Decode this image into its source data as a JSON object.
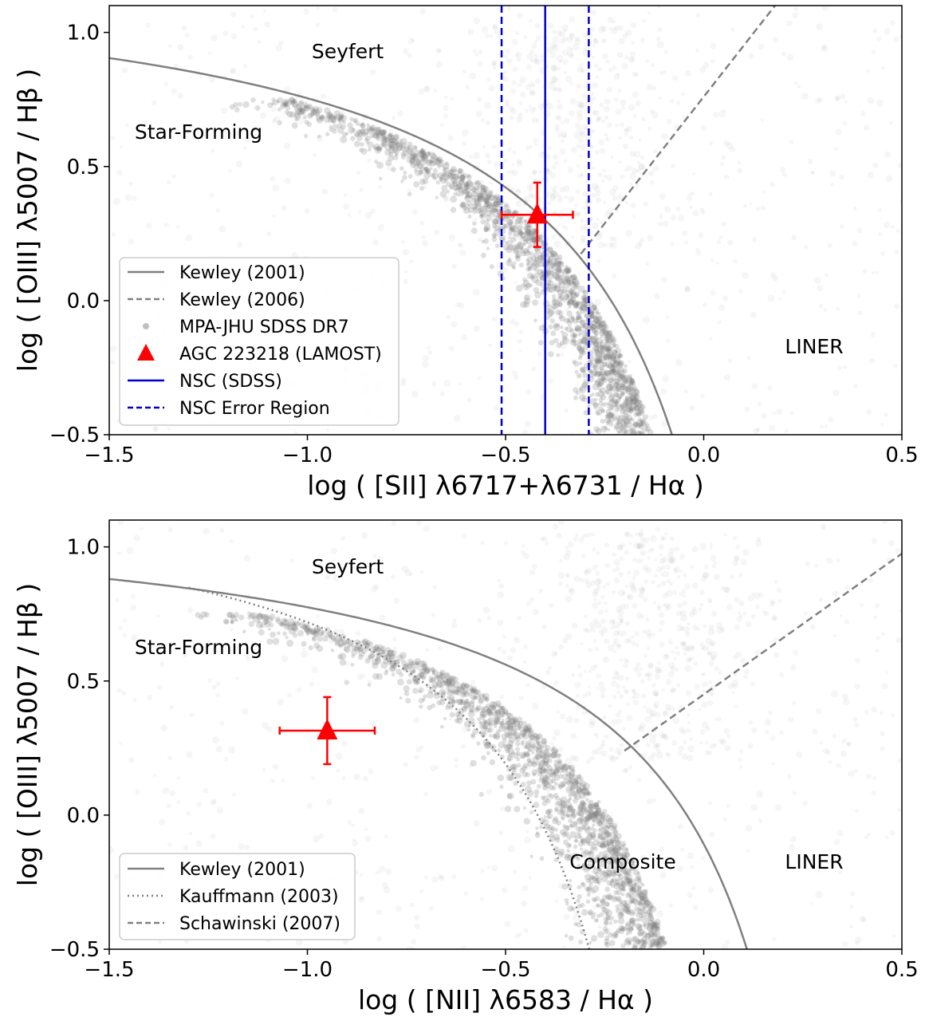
{
  "chart_data": [
    {
      "type": "scatter",
      "title": "",
      "xlabel": "log ( [SII] λ6717+λ6731 / Hα )",
      "ylabel": "log ( [OIII] λ5007 / Hβ )",
      "xlim": [
        -1.5,
        0.5
      ],
      "ylim": [
        -0.5,
        1.1
      ],
      "xticks": [
        -1.5,
        -1.0,
        -0.5,
        0.0,
        0.5
      ],
      "yticks": [
        -0.5,
        0.0,
        0.5,
        1.0
      ],
      "xtick_labels": [
        "−1.5",
        "−1.0",
        "−0.5",
        "0.0",
        "0.5"
      ],
      "ytick_labels": [
        "−0.5",
        "0.0",
        "0.5",
        "1.0"
      ],
      "regions": [
        "Seyfert",
        "Star-Forming",
        "LINER"
      ],
      "kewley2001": {
        "a": 0.72,
        "b": 0.32,
        "c": 1.3
      },
      "kewley2006": {
        "slope": 1.89,
        "intercept": 0.76,
        "x_start": -0.31
      },
      "nsc": {
        "x": -0.4,
        "x_lo": -0.51,
        "x_hi": -0.29
      },
      "point": {
        "x": -0.42,
        "y": 0.32,
        "xerr": 0.09,
        "yerr": 0.12
      },
      "legend": [
        {
          "label": "Kewley (2001)",
          "style": "solid",
          "color": "#808080"
        },
        {
          "label": "Kewley (2006)",
          "style": "dashed",
          "color": "#808080"
        },
        {
          "label": "MPA-JHU SDSS DR7",
          "style": "dot",
          "color": "#c0c0c0"
        },
        {
          "label": "AGC 223218 (LAMOST)",
          "style": "triangle",
          "color": "#ff0000"
        },
        {
          "label": "NSC (SDSS)",
          "style": "solid",
          "color": "#0000cc"
        },
        {
          "label": "NSC Error Region",
          "style": "dashed",
          "color": "#0000cc"
        }
      ]
    },
    {
      "type": "scatter",
      "title": "",
      "xlabel": "log ( [NII] λ6583 / Hα )",
      "ylabel": "log ( [OIII] λ5007 / Hβ )",
      "xlim": [
        -1.5,
        0.5
      ],
      "ylim": [
        -0.5,
        1.1
      ],
      "xticks": [
        -1.5,
        -1.0,
        -0.5,
        0.0,
        0.5
      ],
      "yticks": [
        -0.5,
        0.0,
        0.5,
        1.0
      ],
      "xtick_labels": [
        "−1.5",
        "−1.0",
        "−0.5",
        "0.0",
        "0.5"
      ],
      "ytick_labels": [
        "−0.5",
        "0.0",
        "0.5",
        "1.0"
      ],
      "regions": [
        "Seyfert",
        "Star-Forming",
        "Composite",
        "LINER"
      ],
      "kewley2001": {
        "a": 0.61,
        "b": 0.47,
        "c": 1.19
      },
      "kauffmann2003": {
        "a": 0.61,
        "b": 0.05,
        "c": 1.3,
        "x_start": -1.3
      },
      "schawinski2007": {
        "slope": 1.05,
        "intercept": 0.45,
        "x_start": -0.2
      },
      "point": {
        "x": -0.95,
        "y": 0.315,
        "xerr": 0.12,
        "yerr": 0.125
      },
      "legend": [
        {
          "label": "Kewley (2001)",
          "style": "solid",
          "color": "#808080"
        },
        {
          "label": "Kauffmann (2003)",
          "style": "dotted",
          "color": "#808080"
        },
        {
          "label": "Schawinski (2007)",
          "style": "dashed",
          "color": "#808080"
        }
      ]
    }
  ]
}
